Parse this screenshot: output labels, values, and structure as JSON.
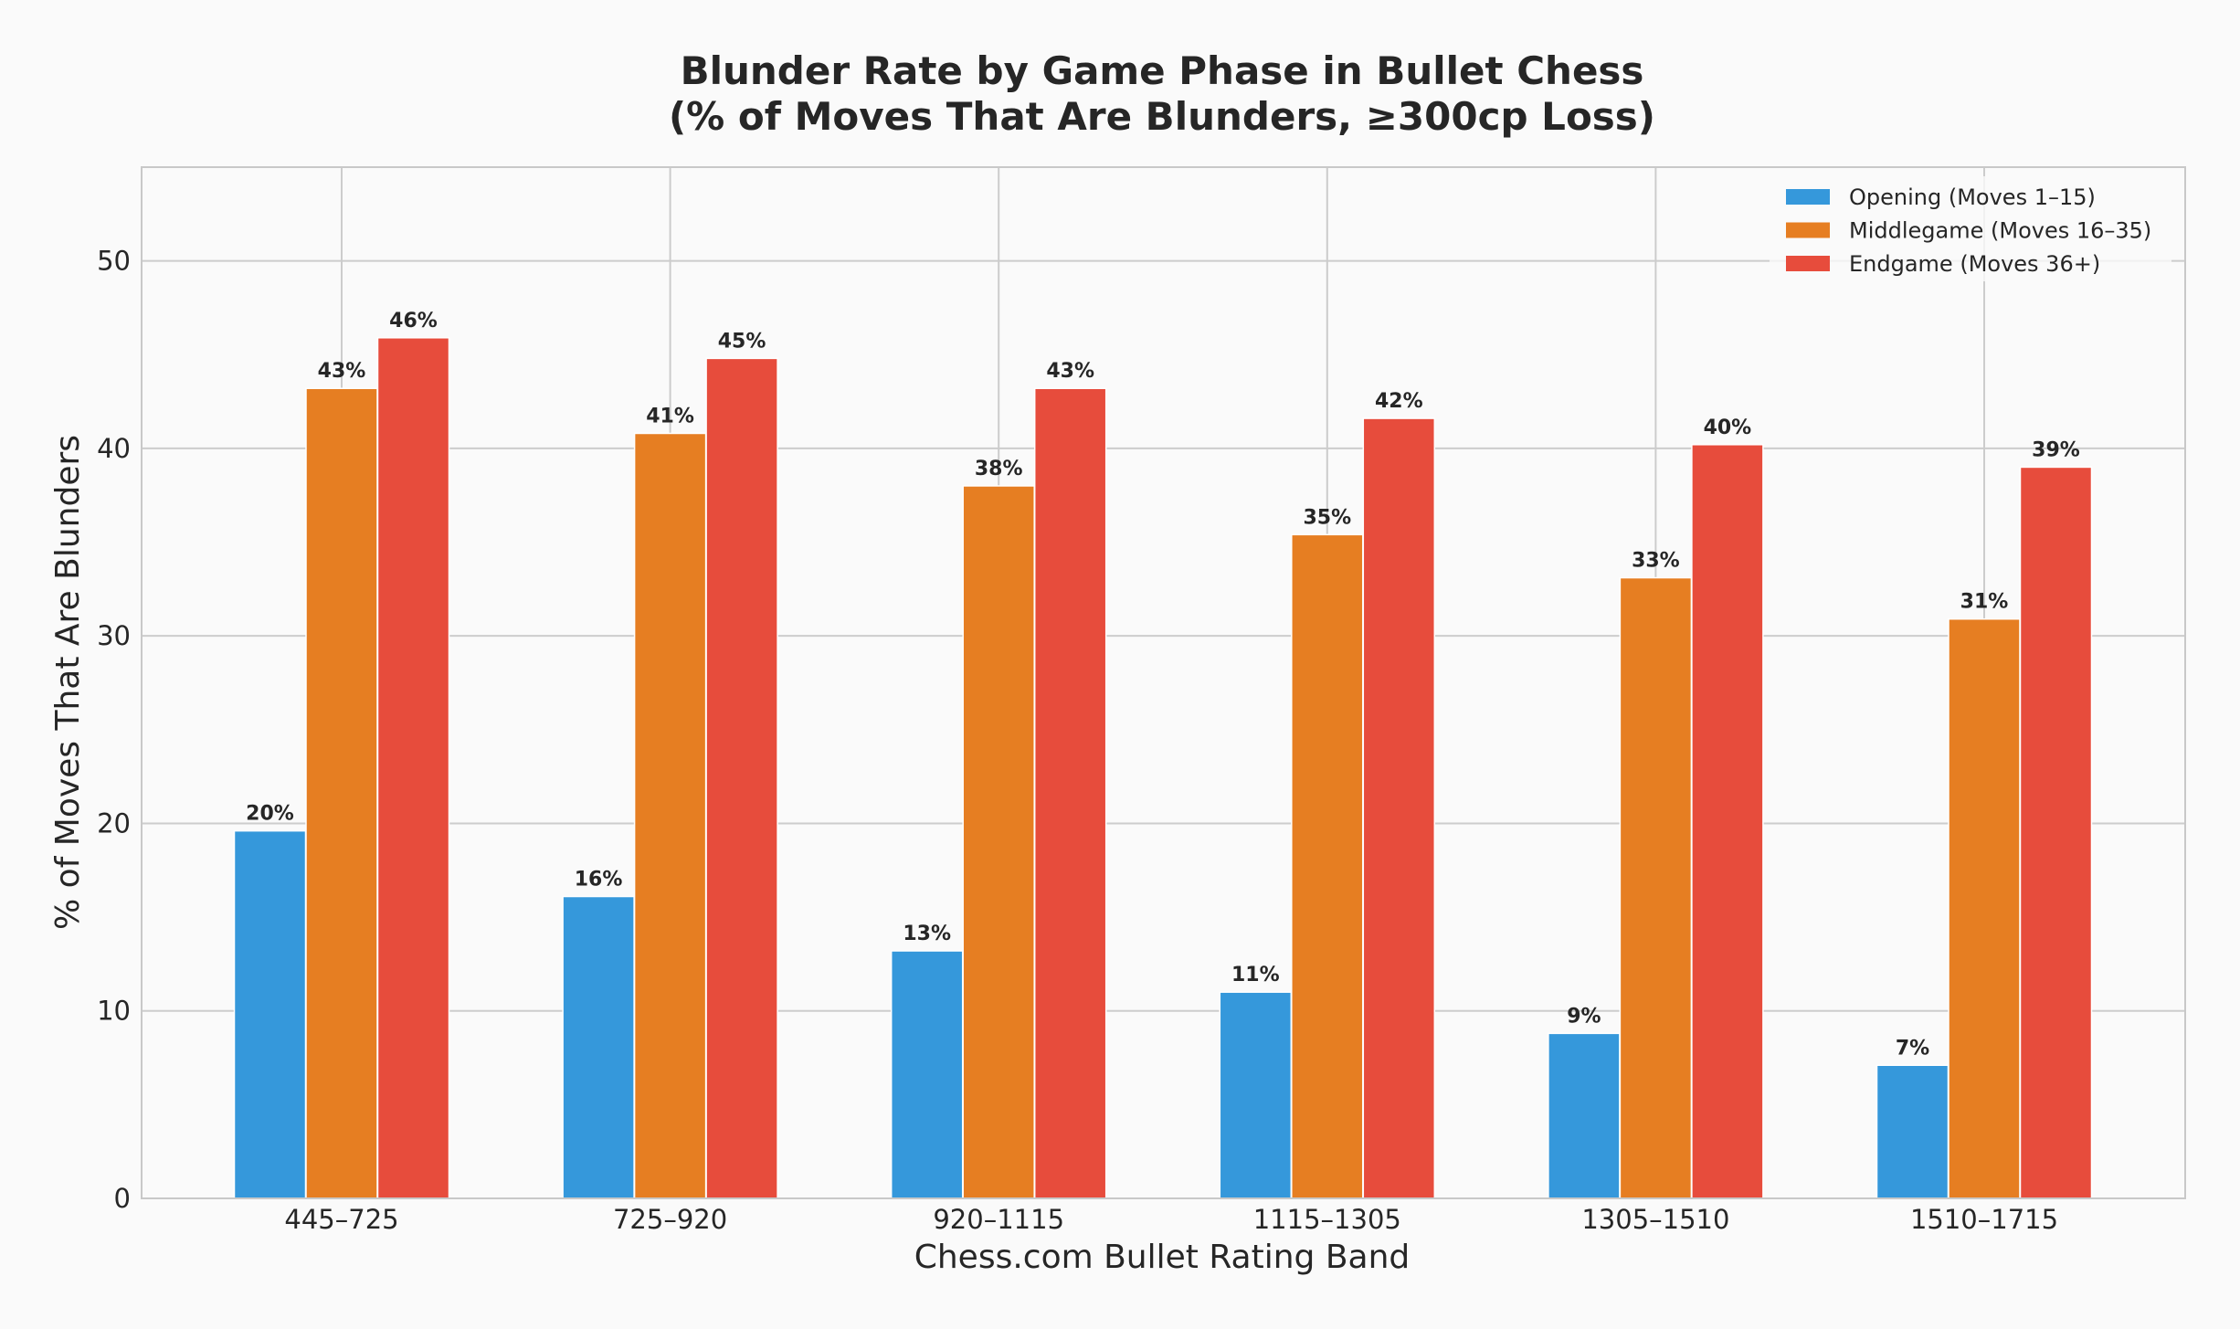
{
  "chart_data": {
    "type": "bar",
    "title_lines": [
      "Blunder Rate by Game Phase in Bullet Chess",
      "(% of Moves That Are Blunders, ≥300cp Loss)"
    ],
    "xlabel": "Chess.com Bullet Rating Band",
    "ylabel": "% of Moves That Are Blunders",
    "categories": [
      "445–725",
      "725–920",
      "920–1115",
      "1115–1305",
      "1305–1510",
      "1510–1715"
    ],
    "ylim": [
      0,
      55
    ],
    "yticks": [
      0,
      10,
      20,
      30,
      40,
      50
    ],
    "grid": true,
    "legend_position": "top-right",
    "series": [
      {
        "name": "Opening (Moves 1–15)",
        "color": "#3598db",
        "values": [
          19.6,
          16.1,
          13.2,
          11.0,
          8.8,
          7.1
        ],
        "labels": [
          "20%",
          "16%",
          "13%",
          "11%",
          "9%",
          "7%"
        ]
      },
      {
        "name": "Middlegame (Moves 16–35)",
        "color": "#e67e22",
        "values": [
          43.2,
          40.8,
          38.0,
          35.4,
          33.1,
          30.9
        ],
        "labels": [
          "43%",
          "41%",
          "38%",
          "35%",
          "33%",
          "31%"
        ]
      },
      {
        "name": "Endgame (Moves 36+)",
        "color": "#e74c3c",
        "values": [
          45.9,
          44.8,
          43.2,
          41.6,
          40.2,
          39.0
        ],
        "labels": [
          "46%",
          "45%",
          "43%",
          "42%",
          "40%",
          "39%"
        ]
      }
    ]
  }
}
